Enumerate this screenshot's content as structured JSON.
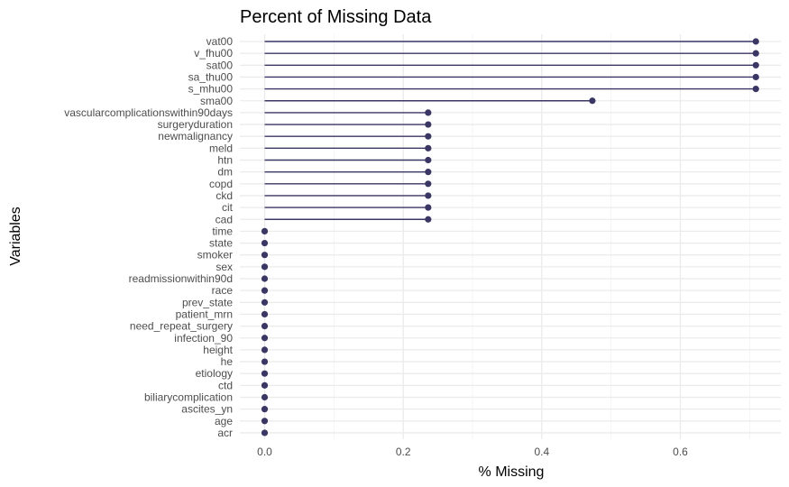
{
  "chart_data": {
    "type": "lollipop",
    "title": "Percent of Missing Data",
    "xlabel": "% Missing",
    "ylabel": "Variables",
    "xlim": [
      0,
      0.71
    ],
    "x_ticks": [
      "0.0",
      "0.2",
      "0.4",
      "0.6"
    ],
    "x_tick_values": [
      0.0,
      0.2,
      0.4,
      0.6
    ],
    "grid": true,
    "color": "#3b3764",
    "categories": [
      "vat00",
      "v_fhu00",
      "sat00",
      "sa_thu00",
      "s_mhu00",
      "sma00",
      "vascularcomplicationswithin90days",
      "surgeryduration",
      "newmalignancy",
      "meld",
      "htn",
      "dm",
      "copd",
      "ckd",
      "cit",
      "cad",
      "time",
      "state",
      "smoker",
      "sex",
      "readmissionwithin90d",
      "race",
      "prev_state",
      "patient_mrn",
      "need_repeat_surgery",
      "infection_90",
      "height",
      "he",
      "etiology",
      "ctd",
      "biliarycomplication",
      "ascites_yn",
      "age",
      "acr"
    ],
    "values": [
      0.709,
      0.709,
      0.709,
      0.709,
      0.709,
      0.473,
      0.236,
      0.236,
      0.236,
      0.236,
      0.236,
      0.236,
      0.236,
      0.236,
      0.236,
      0.236,
      0,
      0,
      0,
      0,
      0,
      0,
      0,
      0,
      0,
      0,
      0,
      0,
      0,
      0,
      0,
      0,
      0,
      0
    ]
  }
}
